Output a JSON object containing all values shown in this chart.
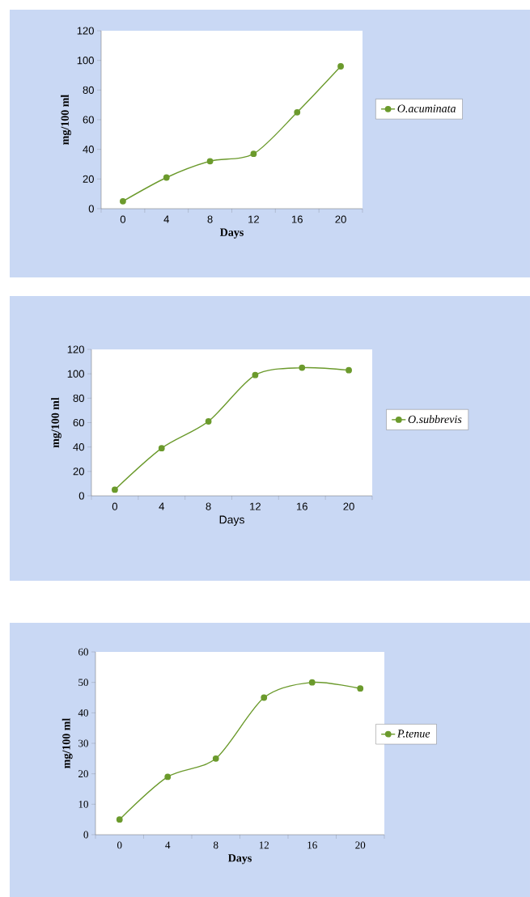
{
  "chart_data": [
    {
      "type": "line",
      "xlabel": "Days",
      "ylabel": "mg/100 ml",
      "categories": [
        "0",
        "4",
        "8",
        "12",
        "16",
        "20"
      ],
      "series": [
        {
          "name": "O.acuminata",
          "color": "#6b9a2c",
          "values": [
            5,
            21,
            32,
            37,
            65,
            96
          ]
        }
      ],
      "ylim": [
        0,
        120
      ],
      "yticks": [
        0,
        20,
        40,
        60,
        80,
        100,
        120
      ],
      "legend": "right",
      "marker": "circle",
      "grid": false
    },
    {
      "type": "line",
      "xlabel": "Days",
      "ylabel": "mg/100 ml",
      "categories": [
        "0",
        "4",
        "8",
        "12",
        "16",
        "20"
      ],
      "series": [
        {
          "name": "O.subbrevis",
          "color": "#6b9a2c",
          "values": [
            5,
            39,
            61,
            99,
            105,
            103
          ]
        }
      ],
      "ylim": [
        0,
        120
      ],
      "yticks": [
        0,
        20,
        40,
        60,
        80,
        100,
        120
      ],
      "legend": "right",
      "marker": "circle",
      "grid": false
    },
    {
      "type": "line",
      "xlabel": "Days",
      "ylabel": "mg/100 ml",
      "categories": [
        "0",
        "4",
        "8",
        "12",
        "16",
        "20"
      ],
      "series": [
        {
          "name": "P.tenue",
          "color": "#6b9a2c",
          "values": [
            5,
            19,
            25,
            45,
            50,
            48
          ]
        }
      ],
      "ylim": [
        0,
        60
      ],
      "yticks": [
        0,
        10,
        20,
        30,
        40,
        50,
        60
      ],
      "legend": "right",
      "marker": "circle",
      "grid": false
    }
  ]
}
